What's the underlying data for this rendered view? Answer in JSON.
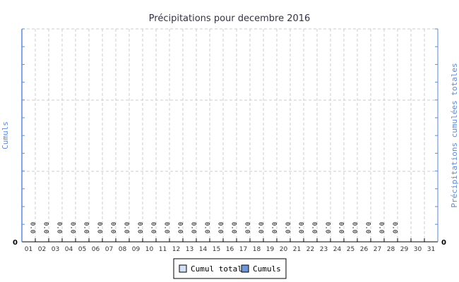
{
  "chart_data": {
    "type": "bar",
    "title": "Précipitations pour decembre 2016",
    "ylabel": "Cumuls",
    "y2label": "Précipitations cumulées totales",
    "ylim": [
      0,
      null
    ],
    "y_tick_labels": [
      "0"
    ],
    "y2_tick_labels": [
      "0"
    ],
    "grid": true,
    "legend_position": "bottom",
    "categories": [
      "01",
      "02",
      "03",
      "04",
      "05",
      "06",
      "07",
      "08",
      "09",
      "10",
      "11",
      "12",
      "13",
      "14",
      "15",
      "16",
      "17",
      "18",
      "19",
      "20",
      "21",
      "22",
      "23",
      "24",
      "25",
      "26",
      "27",
      "28",
      "29",
      "30",
      "31"
    ],
    "series": [
      {
        "name": "Cumul total",
        "color": "#d0e0f8",
        "values": [
          0,
          0,
          0,
          0,
          0,
          0,
          0,
          0,
          0,
          0,
          0,
          0,
          0,
          0,
          0,
          0,
          0,
          0,
          0,
          0,
          0,
          0,
          0,
          0,
          0,
          0,
          0,
          0,
          null,
          null,
          null
        ]
      },
      {
        "name": "Cumuls",
        "color": "#6f96d8",
        "values": [
          0,
          0,
          0,
          0,
          0,
          0,
          0,
          0,
          0,
          0,
          0,
          0,
          0,
          0,
          0,
          0,
          0,
          0,
          0,
          0,
          0,
          0,
          0,
          0,
          0,
          0,
          0,
          0,
          null,
          null,
          null
        ]
      }
    ],
    "data_labels": [
      "0.0",
      "0.0",
      "0.0",
      "0.0",
      "0.0",
      "0.0",
      "0.0",
      "0.0",
      "0.0",
      "0.0",
      "0.0",
      "0.0",
      "0.0",
      "0.0",
      "0.0",
      "0.0",
      "0.0",
      "0.0",
      "0.0",
      "0.0",
      "0.0",
      "0.0",
      "0.0",
      "0.0",
      "0.0",
      "0.0",
      "0.0",
      "0.0",
      "",
      "",
      ""
    ],
    "axis_color": "#5b8ad6"
  }
}
